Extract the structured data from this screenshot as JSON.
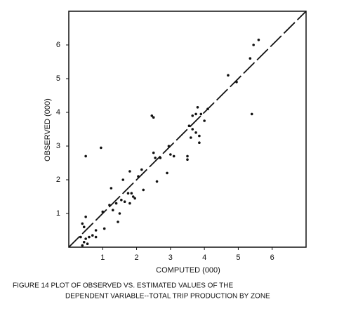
{
  "chart_data": {
    "type": "scatter",
    "xlabel": "COMPUTED (000)",
    "ylabel": "OBSERVED (000)",
    "caption": [
      "FIGURE 14  PLOT OF OBSERVED VS. ESTIMATED VALUES OF THE",
      "DEPENDENT VARIABLE--TOTAL TRIP PRODUCTION BY ZONE"
    ],
    "color": "#111111",
    "xlim": [
      0,
      7
    ],
    "ylim": [
      0,
      7
    ],
    "xticks": [
      1,
      2,
      3,
      4,
      5,
      6
    ],
    "yticks": [
      1,
      2,
      3,
      4,
      5,
      6
    ],
    "x": [
      0.4,
      0.45,
      0.5,
      0.55,
      0.6,
      0.7,
      0.8,
      0.35,
      0.4,
      0.5,
      0.45,
      0.8,
      0.5,
      0.95,
      1.0,
      1.05,
      1.2,
      1.25,
      1.3,
      1.4,
      1.45,
      1.5,
      1.55,
      1.6,
      1.65,
      1.75,
      1.8,
      1.8,
      1.85,
      1.9,
      1.95,
      2.05,
      2.15,
      2.2,
      2.45,
      2.5,
      2.5,
      2.55,
      2.6,
      2.7,
      2.9,
      2.95,
      3.0,
      3.1,
      3.5,
      3.5,
      3.55,
      3.6,
      3.65,
      3.65,
      3.75,
      3.75,
      3.8,
      3.85,
      3.85,
      3.9,
      4.0,
      4.1,
      4.7,
      4.95,
      5.35,
      5.45,
      5.6,
      5.4
    ],
    "y": [
      0.05,
      0.15,
      0.25,
      0.1,
      0.3,
      0.35,
      0.3,
      0.3,
      0.7,
      0.9,
      0.6,
      0.5,
      2.7,
      2.95,
      1.05,
      0.55,
      1.25,
      1.75,
      1.1,
      1.3,
      0.75,
      1.0,
      1.4,
      2.0,
      1.35,
      1.6,
      2.25,
      1.3,
      1.6,
      1.5,
      1.45,
      2.1,
      2.3,
      1.7,
      3.9,
      3.85,
      2.8,
      2.65,
      1.95,
      2.65,
      2.2,
      3.0,
      2.75,
      2.7,
      2.6,
      2.7,
      3.6,
      3.25,
      3.5,
      3.9,
      3.95,
      3.4,
      4.15,
      3.3,
      3.1,
      3.95,
      3.75,
      4.1,
      5.1,
      4.9,
      5.6,
      6.0,
      6.15,
      3.95
    ]
  }
}
